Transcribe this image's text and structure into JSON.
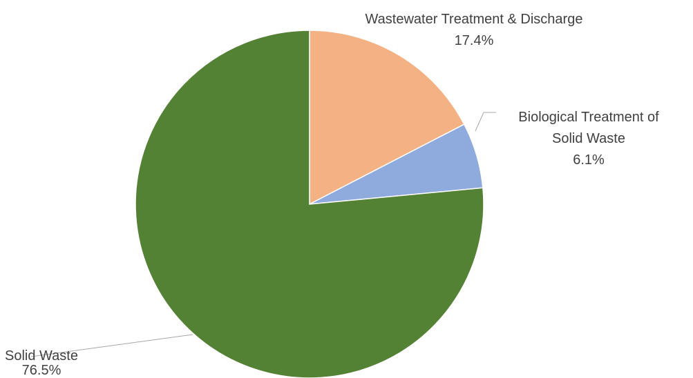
{
  "chart_data": {
    "type": "pie",
    "categories": [
      "Wastewater Treatment & Discharge",
      "Biological Treatment of Solid Waste",
      "Solid Waste"
    ],
    "values": [
      17.4,
      6.1,
      76.5
    ],
    "value_labels": [
      "17.4%",
      "6.1%",
      "76.5%"
    ],
    "colors": [
      "#f4b183",
      "#8faadc",
      "#548235"
    ]
  }
}
